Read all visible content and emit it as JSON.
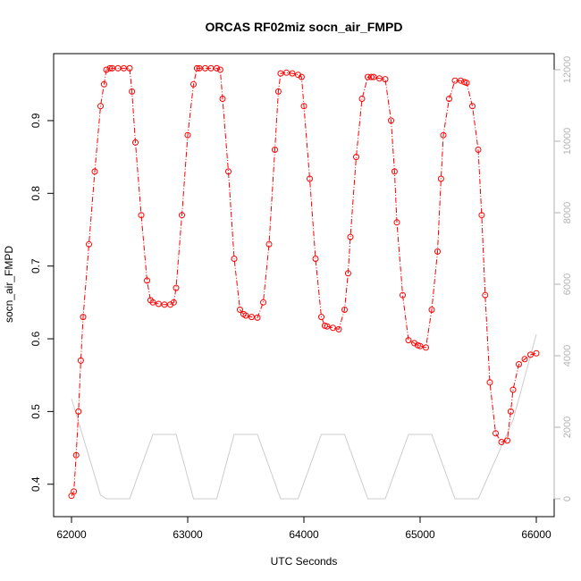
{
  "chart_data": {
    "type": "line",
    "title": "ORCAS RF02miz socn_air_FMPD",
    "xlabel": "UTC Seconds",
    "ylabel": "socn_air_FMPD",
    "xlim": [
      62000,
      66000
    ],
    "ylim": [
      0.38,
      0.97
    ],
    "x_ticks": [
      62000,
      63000,
      64000,
      65000,
      66000
    ],
    "y_ticks": [
      0.4,
      0.5,
      0.6,
      0.7,
      0.8,
      0.9
    ],
    "y2_ticks": [
      0,
      2000,
      4000,
      6000,
      8000,
      10000,
      12000
    ],
    "y2lim": [
      0,
      12000
    ],
    "grid": false,
    "series": [
      {
        "role": "primary",
        "color": "#ff0000",
        "marker": "open-circle",
        "line_style": "dash-dot",
        "x": [
          62000,
          62020,
          62040,
          62060,
          62080,
          62100,
          62150,
          62200,
          62250,
          62280,
          62300,
          62330,
          62350,
          62400,
          62450,
          62500,
          62520,
          62550,
          62600,
          62650,
          62680,
          62700,
          62750,
          62800,
          62850,
          62880,
          62900,
          62950,
          63000,
          63050,
          63080,
          63100,
          63150,
          63200,
          63250,
          63280,
          63300,
          63350,
          63400,
          63450,
          63480,
          63500,
          63550,
          63600,
          63650,
          63700,
          63750,
          63780,
          63800,
          63850,
          63900,
          63950,
          63980,
          64000,
          64050,
          64100,
          64150,
          64180,
          64200,
          64250,
          64300,
          64350,
          64380,
          64400,
          64450,
          64500,
          64550,
          64580,
          64600,
          64650,
          64700,
          64750,
          64780,
          64800,
          64850,
          64900,
          64950,
          64980,
          65000,
          65050,
          65100,
          65150,
          65180,
          65200,
          65250,
          65300,
          65350,
          65380,
          65400,
          65450,
          65500,
          65530,
          65560,
          65600,
          65650,
          65700,
          65750,
          65780,
          65800,
          65850,
          65900,
          65950,
          66000
        ],
        "y": [
          0.384,
          0.39,
          0.44,
          0.5,
          0.57,
          0.63,
          0.73,
          0.83,
          0.92,
          0.95,
          0.97,
          0.972,
          0.972,
          0.972,
          0.972,
          0.972,
          0.94,
          0.87,
          0.77,
          0.68,
          0.653,
          0.65,
          0.648,
          0.647,
          0.647,
          0.65,
          0.67,
          0.77,
          0.88,
          0.95,
          0.972,
          0.972,
          0.972,
          0.972,
          0.972,
          0.97,
          0.93,
          0.83,
          0.71,
          0.64,
          0.634,
          0.632,
          0.63,
          0.629,
          0.65,
          0.73,
          0.86,
          0.94,
          0.965,
          0.966,
          0.965,
          0.963,
          0.96,
          0.92,
          0.82,
          0.71,
          0.63,
          0.618,
          0.617,
          0.615,
          0.613,
          0.64,
          0.69,
          0.74,
          0.85,
          0.93,
          0.96,
          0.96,
          0.96,
          0.958,
          0.957,
          0.9,
          0.83,
          0.76,
          0.66,
          0.598,
          0.594,
          0.591,
          0.59,
          0.588,
          0.64,
          0.72,
          0.82,
          0.88,
          0.93,
          0.955,
          0.955,
          0.953,
          0.952,
          0.92,
          0.86,
          0.77,
          0.66,
          0.54,
          0.47,
          0.458,
          0.46,
          0.5,
          0.53,
          0.565,
          0.572,
          0.578,
          0.58
        ]
      },
      {
        "role": "secondary-axis",
        "color": "#cccccc",
        "marker": "none",
        "line_style": "solid",
        "x": [
          62000,
          62250,
          62300,
          62500,
          62700,
          62900,
          63050,
          63250,
          63400,
          63600,
          63800,
          63950,
          64150,
          64350,
          64550,
          64700,
          64900,
          65100,
          65300,
          65500,
          65800,
          66000
        ],
        "y": [
          2800,
          100,
          0,
          0,
          1800,
          1800,
          0,
          0,
          1800,
          1800,
          0,
          0,
          1800,
          1800,
          0,
          0,
          1800,
          1800,
          0,
          0,
          2200,
          4600
        ]
      }
    ]
  }
}
